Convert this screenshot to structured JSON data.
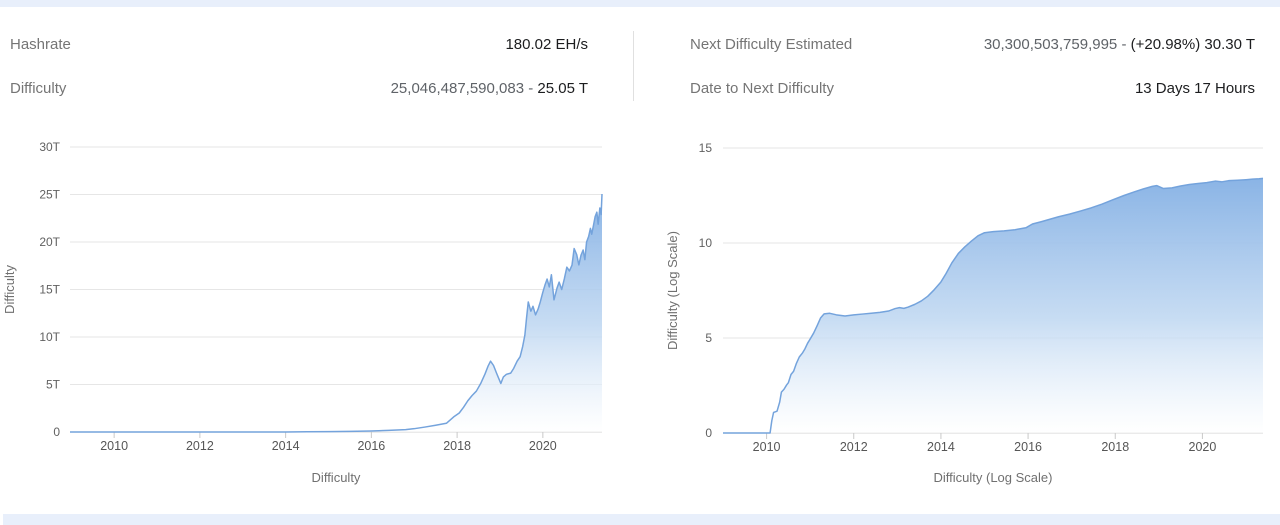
{
  "page": {
    "accent_strip_color": "#e8effb",
    "background_color": "#ffffff"
  },
  "stats": {
    "left": [
      {
        "label": "Hashrate",
        "value_plain": "",
        "value_strong": "180.02 EH/s"
      },
      {
        "label": "Difficulty",
        "value_plain": "25,046,487,590,083 - ",
        "value_strong": "25.05 T"
      }
    ],
    "right": [
      {
        "label": "Next Difficulty Estimated",
        "value_plain": "30,300,503,759,995 - ",
        "value_strong": "(+20.98%) 30.30 T"
      },
      {
        "label": "Date to Next Difficulty",
        "value_plain": "",
        "value_strong": "13 Days 17 Hours"
      }
    ]
  },
  "chart_data": [
    {
      "type": "area",
      "title": "",
      "xlabel": "Difficulty",
      "ylabel": "Difficulty",
      "legend": "none",
      "grid": "horizontal",
      "x_domain": [
        2008.97,
        2021.38
      ],
      "xticks": [
        2010,
        2012,
        2014,
        2016,
        2018,
        2020
      ],
      "ylim": [
        0,
        30
      ],
      "y_unit": "T (trillion)",
      "ytick_values": [
        0,
        5,
        10,
        15,
        20,
        25,
        30
      ],
      "ytick_labels": [
        "0",
        "5T",
        "10T",
        "15T",
        "20T",
        "25T",
        "30T"
      ],
      "line_color": "#74a3dc",
      "fill_top_color": "#84b0e4",
      "fill_bottom_color": "#ffffff",
      "points": [
        [
          2008.97,
          0
        ],
        [
          2012,
          0.001
        ],
        [
          2013,
          0.003
        ],
        [
          2014,
          0.004
        ],
        [
          2014.5,
          0.02
        ],
        [
          2015,
          0.044
        ],
        [
          2015.5,
          0.06
        ],
        [
          2016,
          0.105
        ],
        [
          2016.4,
          0.17
        ],
        [
          2016.8,
          0.25
        ],
        [
          2017,
          0.35
        ],
        [
          2017.25,
          0.52
        ],
        [
          2017.5,
          0.71
        ],
        [
          2017.75,
          0.92
        ],
        [
          2017.92,
          1.59
        ],
        [
          2018.05,
          2.0
        ],
        [
          2018.15,
          2.6
        ],
        [
          2018.25,
          3.29
        ],
        [
          2018.35,
          3.84
        ],
        [
          2018.45,
          4.31
        ],
        [
          2018.55,
          5.1
        ],
        [
          2018.65,
          6.1
        ],
        [
          2018.72,
          6.91
        ],
        [
          2018.78,
          7.45
        ],
        [
          2018.85,
          7.0
        ],
        [
          2018.92,
          6.2
        ],
        [
          2018.97,
          5.65
        ],
        [
          2019.02,
          5.11
        ],
        [
          2019.08,
          5.8
        ],
        [
          2019.15,
          6.07
        ],
        [
          2019.25,
          6.2
        ],
        [
          2019.32,
          6.7
        ],
        [
          2019.4,
          7.45
        ],
        [
          2019.47,
          7.93
        ],
        [
          2019.53,
          9.01
        ],
        [
          2019.58,
          10.18
        ],
        [
          2019.62,
          12.0
        ],
        [
          2019.66,
          13.69
        ],
        [
          2019.72,
          12.72
        ],
        [
          2019.77,
          13.23
        ],
        [
          2019.83,
          12.33
        ],
        [
          2019.89,
          12.95
        ],
        [
          2019.94,
          13.69
        ],
        [
          2020.0,
          14.72
        ],
        [
          2020.05,
          15.47
        ],
        [
          2020.1,
          16.1
        ],
        [
          2020.15,
          15.27
        ],
        [
          2020.2,
          16.55
        ],
        [
          2020.26,
          13.91
        ],
        [
          2020.33,
          15.14
        ],
        [
          2020.38,
          15.78
        ],
        [
          2020.44,
          15.0
        ],
        [
          2020.5,
          16.1
        ],
        [
          2020.56,
          17.35
        ],
        [
          2020.62,
          16.95
        ],
        [
          2020.68,
          17.56
        ],
        [
          2020.73,
          19.31
        ],
        [
          2020.79,
          18.67
        ],
        [
          2020.84,
          17.59
        ],
        [
          2020.89,
          18.6
        ],
        [
          2020.94,
          19.16
        ],
        [
          2020.98,
          18.14
        ],
        [
          2021.02,
          20.0
        ],
        [
          2021.07,
          20.61
        ],
        [
          2021.11,
          21.43
        ],
        [
          2021.14,
          20.82
        ],
        [
          2021.18,
          21.72
        ],
        [
          2021.22,
          22.67
        ],
        [
          2021.26,
          23.14
        ],
        [
          2021.29,
          21.87
        ],
        [
          2021.33,
          23.58
        ],
        [
          2021.36,
          22.9
        ],
        [
          2021.38,
          25.05
        ]
      ]
    },
    {
      "type": "area",
      "title": "",
      "xlabel": "Difficulty (Log Scale)",
      "ylabel": "Difficulty (Log Scale)",
      "legend": "none",
      "grid": "horizontal",
      "x_domain": [
        2009.0,
        2021.39
      ],
      "xticks": [
        2010,
        2012,
        2014,
        2016,
        2018,
        2020
      ],
      "ylim": [
        0,
        15
      ],
      "y_unit": "log10(difficulty)",
      "ytick_values": [
        0,
        5,
        10,
        15
      ],
      "ytick_labels": [
        "0",
        "5",
        "10",
        "15"
      ],
      "line_color": "#74a3dc",
      "fill_top_color": "#84b0e4",
      "fill_bottom_color": "#ffffff",
      "points": [
        [
          2009.0,
          0
        ],
        [
          2010.08,
          0
        ],
        [
          2010.12,
          0.65
        ],
        [
          2010.16,
          1.08
        ],
        [
          2010.24,
          1.15
        ],
        [
          2010.3,
          1.62
        ],
        [
          2010.34,
          2.15
        ],
        [
          2010.4,
          2.3
        ],
        [
          2010.46,
          2.53
        ],
        [
          2010.5,
          2.65
        ],
        [
          2010.56,
          3.08
        ],
        [
          2010.62,
          3.25
        ],
        [
          2010.68,
          3.64
        ],
        [
          2010.75,
          4.0
        ],
        [
          2010.82,
          4.2
        ],
        [
          2010.88,
          4.43
        ],
        [
          2010.94,
          4.72
        ],
        [
          2011.0,
          4.95
        ],
        [
          2011.08,
          5.26
        ],
        [
          2011.16,
          5.65
        ],
        [
          2011.24,
          6.06
        ],
        [
          2011.32,
          6.27
        ],
        [
          2011.45,
          6.3
        ],
        [
          2011.6,
          6.22
        ],
        [
          2011.8,
          6.16
        ],
        [
          2012.0,
          6.22
        ],
        [
          2012.2,
          6.26
        ],
        [
          2012.4,
          6.3
        ],
        [
          2012.6,
          6.35
        ],
        [
          2012.8,
          6.42
        ],
        [
          2012.95,
          6.55
        ],
        [
          2013.05,
          6.6
        ],
        [
          2013.15,
          6.56
        ],
        [
          2013.25,
          6.63
        ],
        [
          2013.4,
          6.77
        ],
        [
          2013.55,
          6.95
        ],
        [
          2013.7,
          7.2
        ],
        [
          2013.85,
          7.55
        ],
        [
          2014.0,
          7.95
        ],
        [
          2014.12,
          8.4
        ],
        [
          2014.25,
          8.95
        ],
        [
          2014.4,
          9.45
        ],
        [
          2014.55,
          9.8
        ],
        [
          2014.7,
          10.1
        ],
        [
          2014.85,
          10.38
        ],
        [
          2015.0,
          10.54
        ],
        [
          2015.2,
          10.6
        ],
        [
          2015.45,
          10.64
        ],
        [
          2015.7,
          10.7
        ],
        [
          2015.95,
          10.8
        ],
        [
          2016.1,
          11.0
        ],
        [
          2016.3,
          11.12
        ],
        [
          2016.5,
          11.25
        ],
        [
          2016.7,
          11.38
        ],
        [
          2016.95,
          11.52
        ],
        [
          2017.2,
          11.68
        ],
        [
          2017.45,
          11.85
        ],
        [
          2017.7,
          12.05
        ],
        [
          2017.95,
          12.28
        ],
        [
          2018.2,
          12.5
        ],
        [
          2018.45,
          12.7
        ],
        [
          2018.65,
          12.85
        ],
        [
          2018.85,
          12.98
        ],
        [
          2018.95,
          13.02
        ],
        [
          2019.1,
          12.87
        ],
        [
          2019.3,
          12.9
        ],
        [
          2019.5,
          13.0
        ],
        [
          2019.7,
          13.08
        ],
        [
          2019.9,
          13.13
        ],
        [
          2020.1,
          13.18
        ],
        [
          2020.3,
          13.26
        ],
        [
          2020.45,
          13.22
        ],
        [
          2020.6,
          13.28
        ],
        [
          2020.8,
          13.3
        ],
        [
          2021.0,
          13.33
        ],
        [
          2021.15,
          13.36
        ],
        [
          2021.3,
          13.38
        ],
        [
          2021.39,
          13.4
        ]
      ]
    }
  ]
}
